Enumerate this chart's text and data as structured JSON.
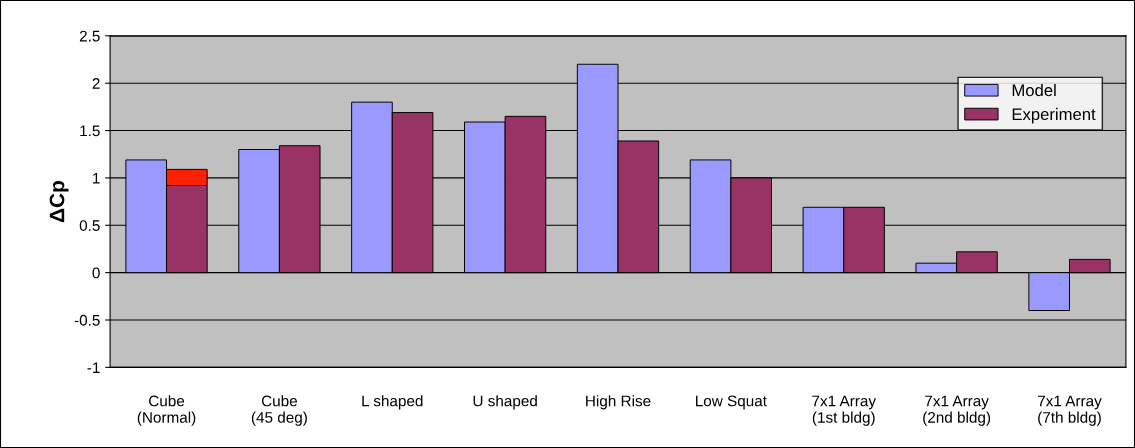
{
  "chart_data": {
    "type": "bar",
    "ylabel": "ΔCp",
    "categories": [
      "Cube\n(Normal)",
      "Cube\n(45 deg)",
      "L shaped",
      "U shaped",
      "High Rise",
      "Low Squat",
      "7x1 Array\n(1st bldg)",
      "7x1 Array\n(2nd bldg)",
      "7x1 Array\n(7th bldg)"
    ],
    "series": [
      {
        "name": "Model",
        "color": "#9999ff",
        "values": [
          1.19,
          1.3,
          1.8,
          1.59,
          2.2,
          1.19,
          0.69,
          0.1,
          -0.4
        ]
      },
      {
        "name": "Experiment",
        "color": "#993366",
        "values": [
          0.92,
          1.34,
          1.69,
          1.65,
          1.39,
          1.0,
          0.69,
          0.22,
          0.14
        ]
      },
      {
        "color": "#ff2000",
        "base": [
          0.92,
          null,
          null,
          null,
          null,
          null,
          null,
          null,
          null
        ],
        "values": [
          0.17,
          null,
          null,
          null,
          null,
          null,
          null,
          null,
          null
        ]
      }
    ],
    "ylim": [
      -1,
      2.5
    ],
    "yticks": [
      {
        "value": -1,
        "label": "-1"
      },
      {
        "value": -0.5,
        "label": "-0.5"
      },
      0,
      0.5,
      1,
      1.5,
      2,
      2.5
    ],
    "grid": "y",
    "legend": "top right"
  }
}
